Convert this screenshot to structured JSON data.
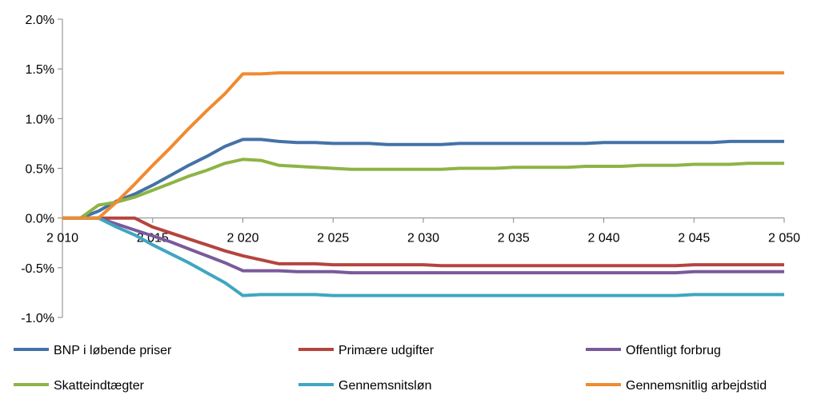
{
  "chart_data": {
    "type": "line",
    "title": "",
    "xlabel": "",
    "ylabel": "",
    "x": [
      2010,
      2011,
      2012,
      2013,
      2014,
      2015,
      2016,
      2017,
      2018,
      2019,
      2020,
      2021,
      2022,
      2023,
      2024,
      2025,
      2026,
      2027,
      2028,
      2029,
      2030,
      2031,
      2032,
      2033,
      2034,
      2035,
      2036,
      2037,
      2038,
      2039,
      2040,
      2041,
      2042,
      2043,
      2044,
      2045,
      2046,
      2047,
      2048,
      2049,
      2050
    ],
    "x_ticks": [
      2010,
      2015,
      2020,
      2025,
      2030,
      2035,
      2040,
      2045,
      2050
    ],
    "x_tick_labels": [
      "2 010",
      "2 015",
      "2 020",
      "2 025",
      "2 030",
      "2 035",
      "2 040",
      "2 045",
      "2 050"
    ],
    "xlim": [
      2010,
      2050
    ],
    "y_ticks": [
      2.0,
      1.5,
      1.0,
      0.5,
      0.0,
      -0.5,
      -1.0
    ],
    "y_tick_labels": [
      "2.0%",
      "1.5%",
      "1.0%",
      "0.5%",
      "0.0%",
      "-0.5%",
      "-1.0%"
    ],
    "ylim": [
      -1.0,
      2.0
    ],
    "grid": false,
    "legend_position": "bottom",
    "series": [
      {
        "name": "BNP i løbende priser",
        "color": "#4472a8",
        "values": [
          0,
          0,
          0.07,
          0.17,
          0.24,
          0.33,
          0.43,
          0.53,
          0.62,
          0.72,
          0.79,
          0.79,
          0.77,
          0.76,
          0.76,
          0.75,
          0.75,
          0.75,
          0.74,
          0.74,
          0.74,
          0.74,
          0.75,
          0.75,
          0.75,
          0.75,
          0.75,
          0.75,
          0.75,
          0.75,
          0.76,
          0.76,
          0.76,
          0.76,
          0.76,
          0.76,
          0.76,
          0.77,
          0.77,
          0.77,
          0.77
        ]
      },
      {
        "name": "Primære udgifter",
        "color": "#b5443f",
        "values": [
          0,
          0,
          0,
          0,
          0,
          -0.09,
          -0.15,
          -0.21,
          -0.27,
          -0.33,
          -0.38,
          -0.42,
          -0.46,
          -0.46,
          -0.46,
          -0.47,
          -0.47,
          -0.47,
          -0.47,
          -0.47,
          -0.47,
          -0.48,
          -0.48,
          -0.48,
          -0.48,
          -0.48,
          -0.48,
          -0.48,
          -0.48,
          -0.48,
          -0.48,
          -0.48,
          -0.48,
          -0.48,
          -0.48,
          -0.47,
          -0.47,
          -0.47,
          -0.47,
          -0.47,
          -0.47
        ]
      },
      {
        "name": "Offentligt forbrug",
        "color": "#7a5a9a",
        "values": [
          0,
          0,
          0,
          -0.06,
          -0.12,
          -0.18,
          -0.24,
          -0.31,
          -0.38,
          -0.45,
          -0.53,
          -0.53,
          -0.53,
          -0.54,
          -0.54,
          -0.54,
          -0.55,
          -0.55,
          -0.55,
          -0.55,
          -0.55,
          -0.55,
          -0.55,
          -0.55,
          -0.55,
          -0.55,
          -0.55,
          -0.55,
          -0.55,
          -0.55,
          -0.55,
          -0.55,
          -0.55,
          -0.55,
          -0.55,
          -0.54,
          -0.54,
          -0.54,
          -0.54,
          -0.54,
          -0.54
        ]
      },
      {
        "name": "Skatteindtægter",
        "color": "#8db445",
        "values": [
          0,
          0,
          0.13,
          0.16,
          0.21,
          0.28,
          0.35,
          0.42,
          0.48,
          0.55,
          0.59,
          0.58,
          0.53,
          0.52,
          0.51,
          0.5,
          0.49,
          0.49,
          0.49,
          0.49,
          0.49,
          0.49,
          0.5,
          0.5,
          0.5,
          0.51,
          0.51,
          0.51,
          0.51,
          0.52,
          0.52,
          0.52,
          0.53,
          0.53,
          0.53,
          0.54,
          0.54,
          0.54,
          0.55,
          0.55,
          0.55
        ]
      },
      {
        "name": "Gennemsnitsløn",
        "color": "#3fa6c0",
        "values": [
          0,
          0,
          0,
          -0.09,
          -0.17,
          -0.27,
          -0.36,
          -0.45,
          -0.55,
          -0.65,
          -0.78,
          -0.77,
          -0.77,
          -0.77,
          -0.77,
          -0.78,
          -0.78,
          -0.78,
          -0.78,
          -0.78,
          -0.78,
          -0.78,
          -0.78,
          -0.78,
          -0.78,
          -0.78,
          -0.78,
          -0.78,
          -0.78,
          -0.78,
          -0.78,
          -0.78,
          -0.78,
          -0.78,
          -0.78,
          -0.77,
          -0.77,
          -0.77,
          -0.77,
          -0.77,
          -0.77
        ]
      },
      {
        "name": "Gennemsnitlig arbejdstid",
        "color": "#f08a30",
        "values": [
          0,
          0,
          0,
          0.16,
          0.34,
          0.53,
          0.71,
          0.9,
          1.08,
          1.25,
          1.45,
          1.45,
          1.46,
          1.46,
          1.46,
          1.46,
          1.46,
          1.46,
          1.46,
          1.46,
          1.46,
          1.46,
          1.46,
          1.46,
          1.46,
          1.46,
          1.46,
          1.46,
          1.46,
          1.46,
          1.46,
          1.46,
          1.46,
          1.46,
          1.46,
          1.46,
          1.46,
          1.46,
          1.46,
          1.46,
          1.46
        ]
      }
    ]
  }
}
